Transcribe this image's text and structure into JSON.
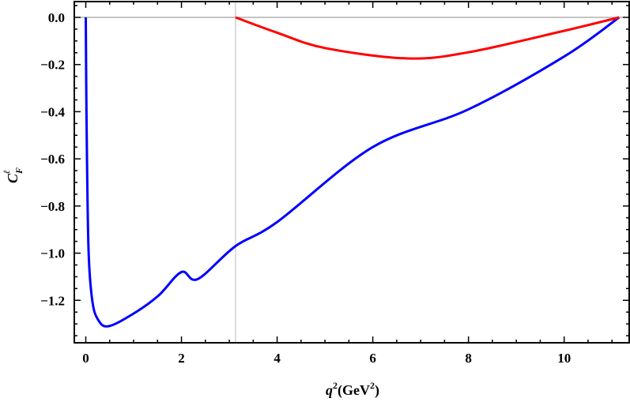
{
  "chart_data": {
    "type": "line",
    "xlabel": {
      "base": "q",
      "sup": "2",
      "unit_open": "(GeV",
      "unit_sup": "2",
      "unit_close": ")"
    },
    "ylabel": {
      "base": "C",
      "sub": "F",
      "sup": "ℓ"
    },
    "xlim": [
      -0.24,
      11.36
    ],
    "ylim": [
      -1.38,
      0.067
    ],
    "x_ticks": [
      0,
      2,
      4,
      6,
      8,
      10
    ],
    "x_tick_labels": [
      "0",
      "2",
      "4",
      "6",
      "8",
      "10"
    ],
    "y_ticks": [
      0.0,
      -0.2,
      -0.4,
      -0.6,
      -0.8,
      -1.0,
      -1.2
    ],
    "y_tick_labels": [
      "0.0",
      "-0.2",
      "-0.4",
      "-0.6",
      "-0.8",
      "-1.0",
      "-1.2"
    ],
    "grid": false,
    "reference_lines": {
      "horizontal_y": 0,
      "vertical_x": 3.13
    },
    "series": [
      {
        "color": "#0000ff",
        "points": [
          [
            0.0,
            0.0
          ],
          [
            0.01,
            -0.3
          ],
          [
            0.025,
            -0.6
          ],
          [
            0.06,
            -1.0
          ],
          [
            0.135,
            -1.2
          ],
          [
            0.25,
            -1.28
          ],
          [
            0.47,
            -1.31
          ],
          [
            1.0,
            -1.256
          ],
          [
            1.52,
            -1.18
          ],
          [
            2.0,
            -1.08
          ],
          [
            2.34,
            -1.11
          ],
          [
            3.13,
            -0.97
          ],
          [
            4.0,
            -0.868
          ],
          [
            6.0,
            -0.55
          ],
          [
            8.0,
            -0.39
          ],
          [
            10.0,
            -0.166
          ],
          [
            11.15,
            0.0
          ]
        ]
      },
      {
        "color": "#ff0000",
        "points": [
          [
            3.13,
            0.0
          ],
          [
            4.0,
            -0.065
          ],
          [
            5.0,
            -0.13
          ],
          [
            6.72,
            -0.174
          ],
          [
            8.0,
            -0.148
          ],
          [
            10.0,
            -0.057
          ],
          [
            11.15,
            0.0
          ]
        ]
      }
    ]
  }
}
